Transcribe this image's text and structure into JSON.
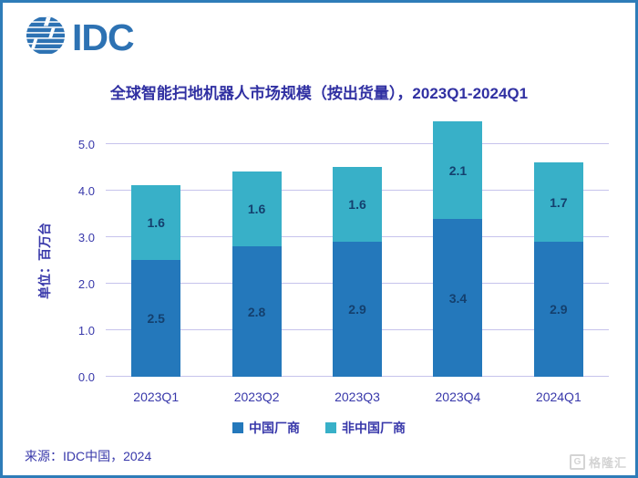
{
  "theme": {
    "border_blue": "#2e7cb8",
    "brand_blue": "#2d72b3",
    "title_color": "#3030a2",
    "axis_text_color": "#3838aa",
    "grid_color": "#c6c3ec",
    "data_label_color": "#14406e",
    "watermark_color": "#d4d4d4"
  },
  "header": {
    "logo_text": "IDC"
  },
  "title": "全球智能扫地机器人市场规模（按出货量），2023Q1-2024Q1",
  "chart_data": {
    "type": "bar",
    "stacked": true,
    "categories": [
      "2023Q1",
      "2023Q2",
      "2023Q3",
      "2023Q4",
      "2024Q1"
    ],
    "series": [
      {
        "name": "中国厂商",
        "color": "#2478bb",
        "values": [
          2.5,
          2.8,
          2.9,
          3.4,
          2.9
        ]
      },
      {
        "name": "非中国厂商",
        "color": "#38b0c8",
        "values": [
          1.6,
          1.6,
          1.6,
          2.1,
          1.7
        ]
      }
    ],
    "ylabel": "单位：百万台",
    "yticks": [
      "0.0",
      "1.0",
      "2.0",
      "3.0",
      "4.0",
      "5.0"
    ],
    "ylim": [
      0,
      5.6
    ],
    "grid": true,
    "legend_position": "bottom"
  },
  "source": "来源：IDC中国，2024",
  "watermark": {
    "logo_letter": "G",
    "text": "格隆汇"
  }
}
